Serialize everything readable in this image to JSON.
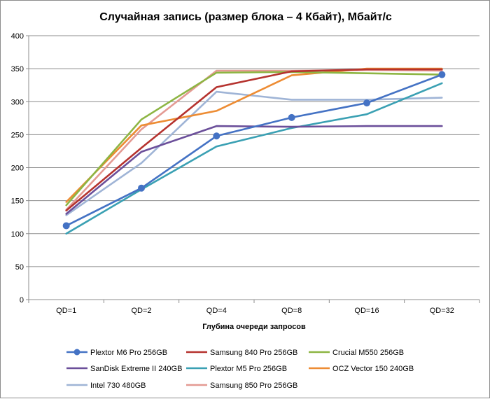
{
  "chart_data": {
    "type": "line",
    "title": "Случайная запись (размер блока – 4 Кбайт), Мбайт/с",
    "xlabel": "Глубина очереди запросов",
    "ylabel": "",
    "categories": [
      "QD=1",
      "QD=2",
      "QD=4",
      "QD=8",
      "QD=16",
      "QD=32"
    ],
    "ylim": [
      0,
      400
    ],
    "yticks": [
      0,
      50,
      100,
      150,
      200,
      250,
      300,
      350,
      400
    ],
    "grid": "horizontal",
    "legend_position": "bottom",
    "series": [
      {
        "name": "Plextor M6 Pro 256GB",
        "color": "#4472c4",
        "marker": "circle",
        "values": [
          112,
          169,
          248,
          276,
          298,
          341
        ]
      },
      {
        "name": "Samsung 840 Pro 256GB",
        "color": "#b5322e",
        "marker": "none",
        "values": [
          135,
          230,
          322,
          346,
          349,
          349
        ]
      },
      {
        "name": "Crucial M550 256GB",
        "color": "#8db543",
        "marker": "none",
        "values": [
          143,
          273,
          344,
          345,
          343,
          341
        ]
      },
      {
        "name": "SanDisk Extreme II 240GB",
        "color": "#6b4f9a",
        "marker": "none",
        "values": [
          130,
          224,
          263,
          262,
          263,
          263
        ]
      },
      {
        "name": "Plextor M5 Pro 256GB",
        "color": "#3aa0b3",
        "marker": "none",
        "values": [
          100,
          167,
          232,
          260,
          281,
          328
        ]
      },
      {
        "name": "OCZ Vector 150 240GB",
        "color": "#ed8c33",
        "marker": "none",
        "values": [
          148,
          264,
          286,
          340,
          350,
          350
        ]
      },
      {
        "name": "Intel 730 480GB",
        "color": "#9fb4d6",
        "marker": "none",
        "values": [
          128,
          207,
          315,
          303,
          303,
          306
        ]
      },
      {
        "name": "Samsung 850 Pro 256GB",
        "color": "#e49a93",
        "marker": "none",
        "values": [
          136,
          258,
          347,
          347,
          348,
          347
        ]
      }
    ]
  }
}
